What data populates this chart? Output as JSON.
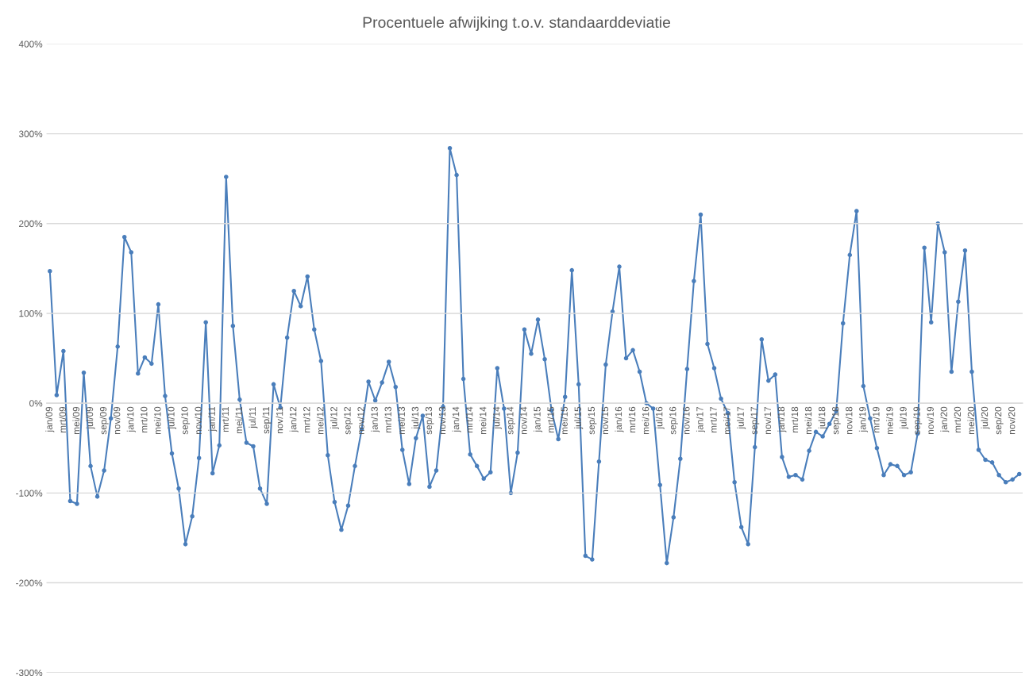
{
  "chart_data": {
    "type": "line",
    "title": "Procentuele afwijking t.o.v. standaarddeviatie",
    "categories": [
      "jan/09",
      null,
      "mrt/09",
      null,
      "mei/09",
      null,
      "jul/09",
      null,
      "sep/09",
      null,
      "nov/09",
      null,
      "jan/10",
      null,
      "mrt/10",
      null,
      "mei/10",
      null,
      "jul/10",
      null,
      "sep/10",
      null,
      "nov/10",
      null,
      "jan/11",
      null,
      "mrt/11",
      null,
      "mei/11",
      null,
      "jul/11",
      null,
      "sep/11",
      null,
      "nov/11",
      null,
      "jan/12",
      null,
      "mrt/12",
      null,
      "mei/12",
      null,
      "jul/12",
      null,
      "sep/12",
      null,
      "nov/12",
      null,
      "jan/13",
      null,
      "mrt/13",
      null,
      "mei/13",
      null,
      "jul/13",
      null,
      "sep/13",
      null,
      "nov/13",
      null,
      "jan/14",
      null,
      "mrt/14",
      null,
      "mei/14",
      null,
      "jul/14",
      null,
      "sep/14",
      null,
      "nov/14",
      null,
      "jan/15",
      null,
      "mrt/15",
      null,
      "mei/15",
      null,
      "jul/15",
      null,
      "sep/15",
      null,
      "nov/15",
      null,
      "jan/16",
      null,
      "mrt/16",
      null,
      "mei/16",
      null,
      "jul/16",
      null,
      "sep/16",
      null,
      "nov/16",
      null,
      "jan/17",
      null,
      "mrt/17",
      null,
      "mei/17",
      null,
      "jul/17",
      null,
      "sep/17",
      null,
      "nov/17",
      null,
      "jan/18",
      null,
      "mrt/18",
      null,
      "mei/18",
      null,
      "jul/18",
      null,
      "sep/18",
      null,
      "nov/18",
      null,
      "jan/19",
      null,
      "mrt/19",
      null,
      "mei/19",
      null,
      "jul/19",
      null,
      "sep/19",
      null,
      "nov/19",
      null,
      "jan/20",
      null,
      "mrt/20",
      null,
      "mei/20",
      null,
      "jul/20",
      null,
      "sep/20",
      null,
      "nov/20",
      null
    ],
    "series": [
      {
        "color": "#4a7ebb",
        "values": [
          147,
          9,
          58,
          -109,
          -112,
          34,
          -70,
          -104,
          -75,
          -17,
          63,
          185,
          168,
          33,
          51,
          44,
          110,
          8,
          -56,
          -95,
          -157,
          -126,
          -61,
          90,
          -78,
          -47,
          252,
          86,
          4,
          -44,
          -48,
          -95,
          -112,
          21,
          -5,
          73,
          125,
          108,
          141,
          82,
          47,
          -58,
          -110,
          -141,
          -114,
          -70,
          -29,
          24,
          3,
          23,
          46,
          18,
          -52,
          -90,
          -39,
          -14,
          -93,
          -75,
          -4,
          284,
          254,
          27,
          -57,
          -70,
          -84,
          -77,
          39,
          -6,
          -100,
          -55,
          82,
          55,
          93,
          49,
          -8,
          -40,
          7,
          148,
          21,
          -170,
          -174,
          -65,
          43,
          102,
          152,
          50,
          59,
          35,
          0,
          -6,
          -91,
          -178,
          -127,
          -62,
          38,
          136,
          210,
          66,
          39,
          5,
          -11,
          -88,
          -138,
          -157,
          -49,
          71,
          25,
          32,
          -60,
          -82,
          -80,
          -85,
          -53,
          -32,
          -37,
          -23,
          -9,
          89,
          165,
          214,
          19,
          -17,
          -50,
          -80,
          -68,
          -70,
          -80,
          -77,
          -34,
          173,
          90,
          200,
          168,
          35,
          113,
          170,
          35,
          -52,
          -63,
          -66,
          -80,
          -88,
          -85,
          -79
        ]
      }
    ],
    "ylim": [
      -300,
      400
    ],
    "yticks": [
      {
        "value": -300,
        "label": "-300%"
      },
      {
        "value": -200,
        "label": "-200%"
      },
      {
        "value": -100,
        "label": "-100%"
      },
      {
        "value": 0,
        "label": "0%"
      },
      {
        "value": 100,
        "label": "100%"
      },
      {
        "value": 200,
        "label": "200%"
      },
      {
        "value": 300,
        "label": "300%"
      },
      {
        "value": 400,
        "label": "400%"
      }
    ],
    "grid": "y",
    "marker": "circle",
    "line_style": "solid"
  }
}
